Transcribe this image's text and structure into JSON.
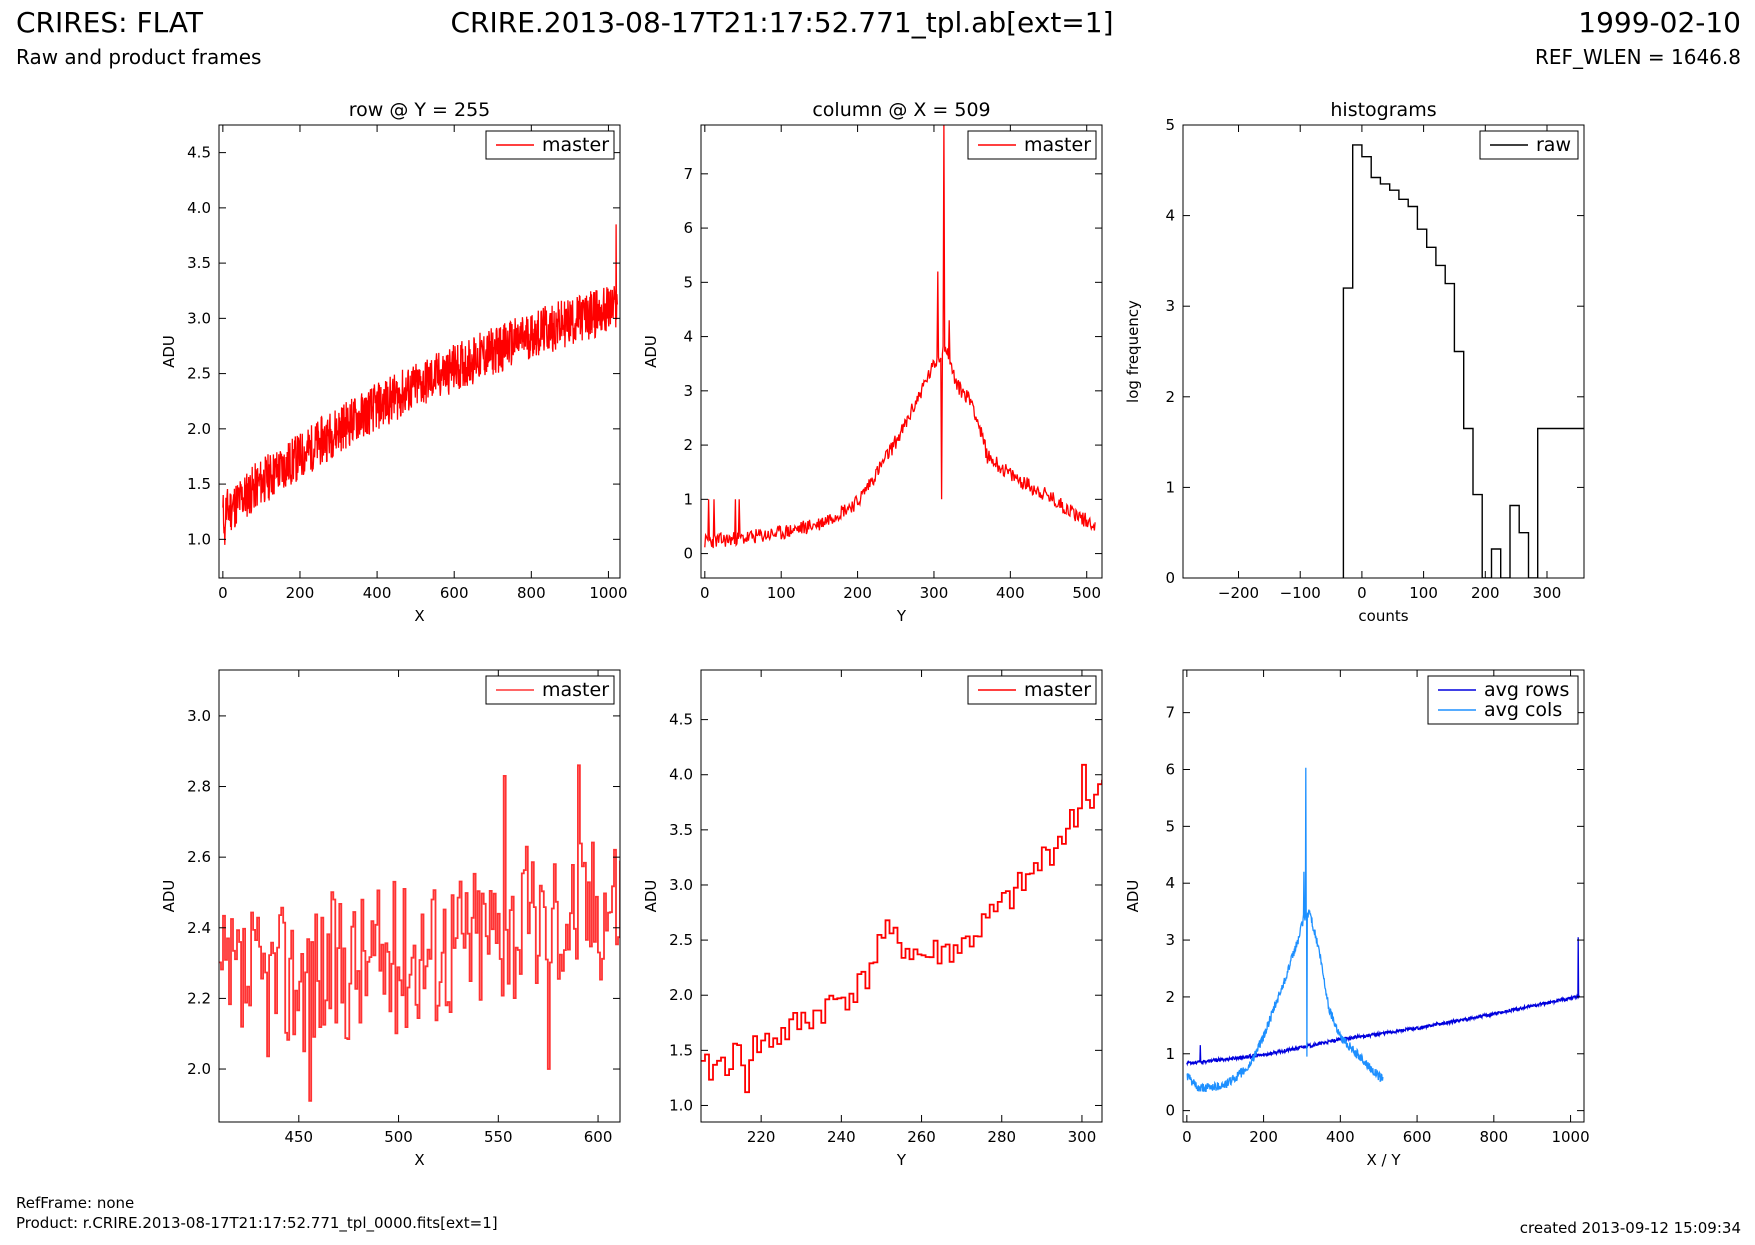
{
  "header": {
    "title": "CRIRES: FLAT",
    "filename": "CRIRE.2013-08-17T21:17:52.771_tpl.ab[ext=1]",
    "date": "1999-02-10",
    "subtitle": "Raw and product frames",
    "ref_wlen": "REF_WLEN = 1646.8"
  },
  "footer": {
    "refframe": "RefFrame: none",
    "product": "Product: r.CRIRE.2013-08-17T21:17:52.771_tpl_0000.fits[ext=1]",
    "created": "created 2013-09-12 15:09:34"
  },
  "colors": {
    "master": "#ff0000",
    "raw": "#000000",
    "avg_rows": "#0000dd",
    "avg_cols": "#1e90ff"
  },
  "chart_data": [
    {
      "id": "row",
      "type": "line",
      "title": "row @ Y = 255",
      "xlabel": "X",
      "ylabel": "ADU",
      "xlim": [
        -10,
        1030
      ],
      "ylim": [
        0.65,
        4.75
      ],
      "xticks": [
        0,
        200,
        400,
        600,
        800,
        1000
      ],
      "yticks": [
        1.0,
        1.5,
        2.0,
        2.5,
        3.0,
        3.5,
        4.0,
        4.5
      ],
      "legend": "top-right",
      "series": [
        {
          "name": "master",
          "color": "#ff0000",
          "step": false,
          "noise": 0.22,
          "seed": 11,
          "x": [
            0,
            1023
          ],
          "y_trend": [
            [
              0,
              1.22
            ],
            [
              100,
              1.52
            ],
            [
              200,
              1.75
            ],
            [
              300,
              2.0
            ],
            [
              400,
              2.2
            ],
            [
              500,
              2.38
            ],
            [
              600,
              2.55
            ],
            [
              700,
              2.7
            ],
            [
              800,
              2.85
            ],
            [
              900,
              2.97
            ],
            [
              1000,
              3.08
            ],
            [
              1023,
              3.1
            ]
          ],
          "points_count": 1024,
          "extremes": [
            [
              1020,
              3.85
            ],
            [
              5,
              0.95
            ]
          ]
        }
      ]
    },
    {
      "id": "column",
      "type": "line",
      "title": "column @ X = 509",
      "xlabel": "Y",
      "ylabel": "ADU",
      "xlim": [
        -5,
        520
      ],
      "ylim": [
        -0.45,
        7.9
      ],
      "xticks": [
        0,
        100,
        200,
        300,
        400,
        500
      ],
      "yticks": [
        0,
        1,
        2,
        3,
        4,
        5,
        6,
        7
      ],
      "legend": "top-right",
      "series": [
        {
          "name": "master",
          "color": "#ff0000",
          "step": false,
          "noise": 0.14,
          "seed": 23,
          "x": [
            0,
            511
          ],
          "y_trend": [
            [
              0,
              0.22
            ],
            [
              50,
              0.28
            ],
            [
              100,
              0.38
            ],
            [
              150,
              0.55
            ],
            [
              200,
              0.95
            ],
            [
              230,
              1.6
            ],
            [
              260,
              2.3
            ],
            [
              290,
              3.2
            ],
            [
              305,
              3.6
            ],
            [
              315,
              3.8
            ],
            [
              330,
              3.1
            ],
            [
              350,
              2.8
            ],
            [
              370,
              1.8
            ],
            [
              400,
              1.45
            ],
            [
              450,
              1.05
            ],
            [
              500,
              0.6
            ],
            [
              511,
              0.55
            ]
          ],
          "points_count": 512,
          "spikes": [
            [
              5,
              1.0
            ],
            [
              12,
              1.0
            ],
            [
              40,
              1.0
            ],
            [
              45,
              1.0
            ],
            [
              310,
              1.0
            ],
            [
              313,
              7.9
            ],
            [
              305,
              5.2
            ],
            [
              320,
              4.3
            ]
          ]
        }
      ]
    },
    {
      "id": "histograms",
      "type": "step",
      "title": "histograms",
      "xlabel": "counts",
      "ylabel": "log frequency",
      "xlim": [
        -290,
        360
      ],
      "ylim": [
        0,
        5
      ],
      "xticks": [
        -200,
        -100,
        0,
        100,
        200,
        300
      ],
      "yticks": [
        0,
        1,
        2,
        3,
        4,
        5
      ],
      "legend": "top-right",
      "series": [
        {
          "name": "raw",
          "color": "#000000",
          "edges": [
            -30,
            -15,
            0,
            15,
            30,
            45,
            60,
            75,
            90,
            105,
            120,
            135,
            150,
            165,
            180,
            195,
            210,
            225,
            240,
            255,
            270,
            285,
            300,
            315,
            330,
            345,
            360
          ],
          "values": [
            3.2,
            4.78,
            4.65,
            4.42,
            4.35,
            4.28,
            4.18,
            4.1,
            3.85,
            3.65,
            3.45,
            3.25,
            2.5,
            1.65,
            0.92,
            0,
            0.32,
            0,
            0.8,
            0.5,
            0,
            1.65,
            1.65,
            1.65,
            1.65,
            1.65
          ]
        }
      ]
    },
    {
      "id": "row-zoom",
      "type": "line",
      "title": "",
      "xlabel": "X",
      "ylabel": "ADU",
      "xlim": [
        410,
        611
      ],
      "ylim": [
        1.85,
        3.13
      ],
      "xticks": [
        450,
        500,
        550,
        600
      ],
      "yticks": [
        2.0,
        2.2,
        2.4,
        2.6,
        2.8,
        3.0
      ],
      "legend": "top-right",
      "series": [
        {
          "name": "master",
          "color": "#ff3333",
          "step": true,
          "noise": 0.22,
          "seed": 37,
          "x": [
            410,
            611
          ],
          "y_trend": [
            [
              410,
              2.22
            ],
            [
              500,
              2.32
            ],
            [
              600,
              2.47
            ],
            [
              611,
              2.5
            ]
          ],
          "points_count": 201,
          "extremes": [
            [
              553,
              2.83
            ],
            [
              590,
              2.86
            ],
            [
              575,
              2.0
            ],
            [
              455,
              1.91
            ]
          ]
        }
      ]
    },
    {
      "id": "column-zoom",
      "type": "line",
      "title": "",
      "xlabel": "Y",
      "ylabel": "ADU",
      "xlim": [
        205,
        305
      ],
      "ylim": [
        0.85,
        4.95
      ],
      "xticks": [
        220,
        240,
        260,
        280,
        300
      ],
      "yticks": [
        1.0,
        1.5,
        2.0,
        2.5,
        3.0,
        3.5,
        4.0,
        4.5
      ],
      "legend": "top-right",
      "series": [
        {
          "name": "master",
          "color": "#ff0000",
          "step": true,
          "noise": 0.15,
          "seed": 41,
          "x": [
            205,
            305
          ],
          "y_trend": [
            [
              205,
              1.3
            ],
            [
              225,
              1.65
            ],
            [
              245,
              2.1
            ],
            [
              250,
              2.55
            ],
            [
              260,
              2.35
            ],
            [
              270,
              2.45
            ],
            [
              285,
              3.0
            ],
            [
              300,
              3.7
            ],
            [
              305,
              3.9
            ]
          ],
          "points_count": 101,
          "extremes": [
            [
              300,
              4.09
            ],
            [
              216,
              1.12
            ]
          ]
        }
      ]
    },
    {
      "id": "averages",
      "type": "line",
      "title": "",
      "xlabel": "X / Y",
      "ylabel": "ADU",
      "xlim": [
        -10,
        1035
      ],
      "ylim": [
        -0.2,
        7.75
      ],
      "xticks": [
        0,
        200,
        400,
        600,
        800,
        1000
      ],
      "yticks": [
        0,
        1,
        2,
        3,
        4,
        5,
        6,
        7
      ],
      "legend": "top-right",
      "series": [
        {
          "name": "avg rows",
          "color": "#0000dd",
          "step": false,
          "noise": 0.03,
          "seed": 53,
          "x": [
            0,
            1023
          ],
          "y_trend": [
            [
              0,
              0.85
            ],
            [
              30,
              0.85
            ],
            [
              200,
              0.98
            ],
            [
              400,
              1.25
            ],
            [
              600,
              1.45
            ],
            [
              800,
              1.7
            ],
            [
              1000,
              1.98
            ],
            [
              1023,
              2.02
            ]
          ],
          "points_count": 1024,
          "spikes": [
            [
              35,
              1.15
            ],
            [
              1020,
              3.05
            ]
          ]
        },
        {
          "name": "avg cols",
          "color": "#1e90ff",
          "step": false,
          "noise": 0.08,
          "seed": 61,
          "x": [
            0,
            511
          ],
          "y_trend": [
            [
              0,
              0.62
            ],
            [
              30,
              0.38
            ],
            [
              100,
              0.45
            ],
            [
              160,
              0.75
            ],
            [
              200,
              1.3
            ],
            [
              250,
              2.2
            ],
            [
              290,
              3.0
            ],
            [
              305,
              3.4
            ],
            [
              320,
              3.5
            ],
            [
              345,
              2.8
            ],
            [
              370,
              1.8
            ],
            [
              400,
              1.3
            ],
            [
              450,
              0.95
            ],
            [
              500,
              0.6
            ],
            [
              511,
              0.55
            ]
          ],
          "points_count": 512,
          "spikes": [
            [
              310,
              6.03
            ],
            [
              313,
              0.95
            ],
            [
              305,
              4.2
            ]
          ]
        }
      ]
    }
  ]
}
